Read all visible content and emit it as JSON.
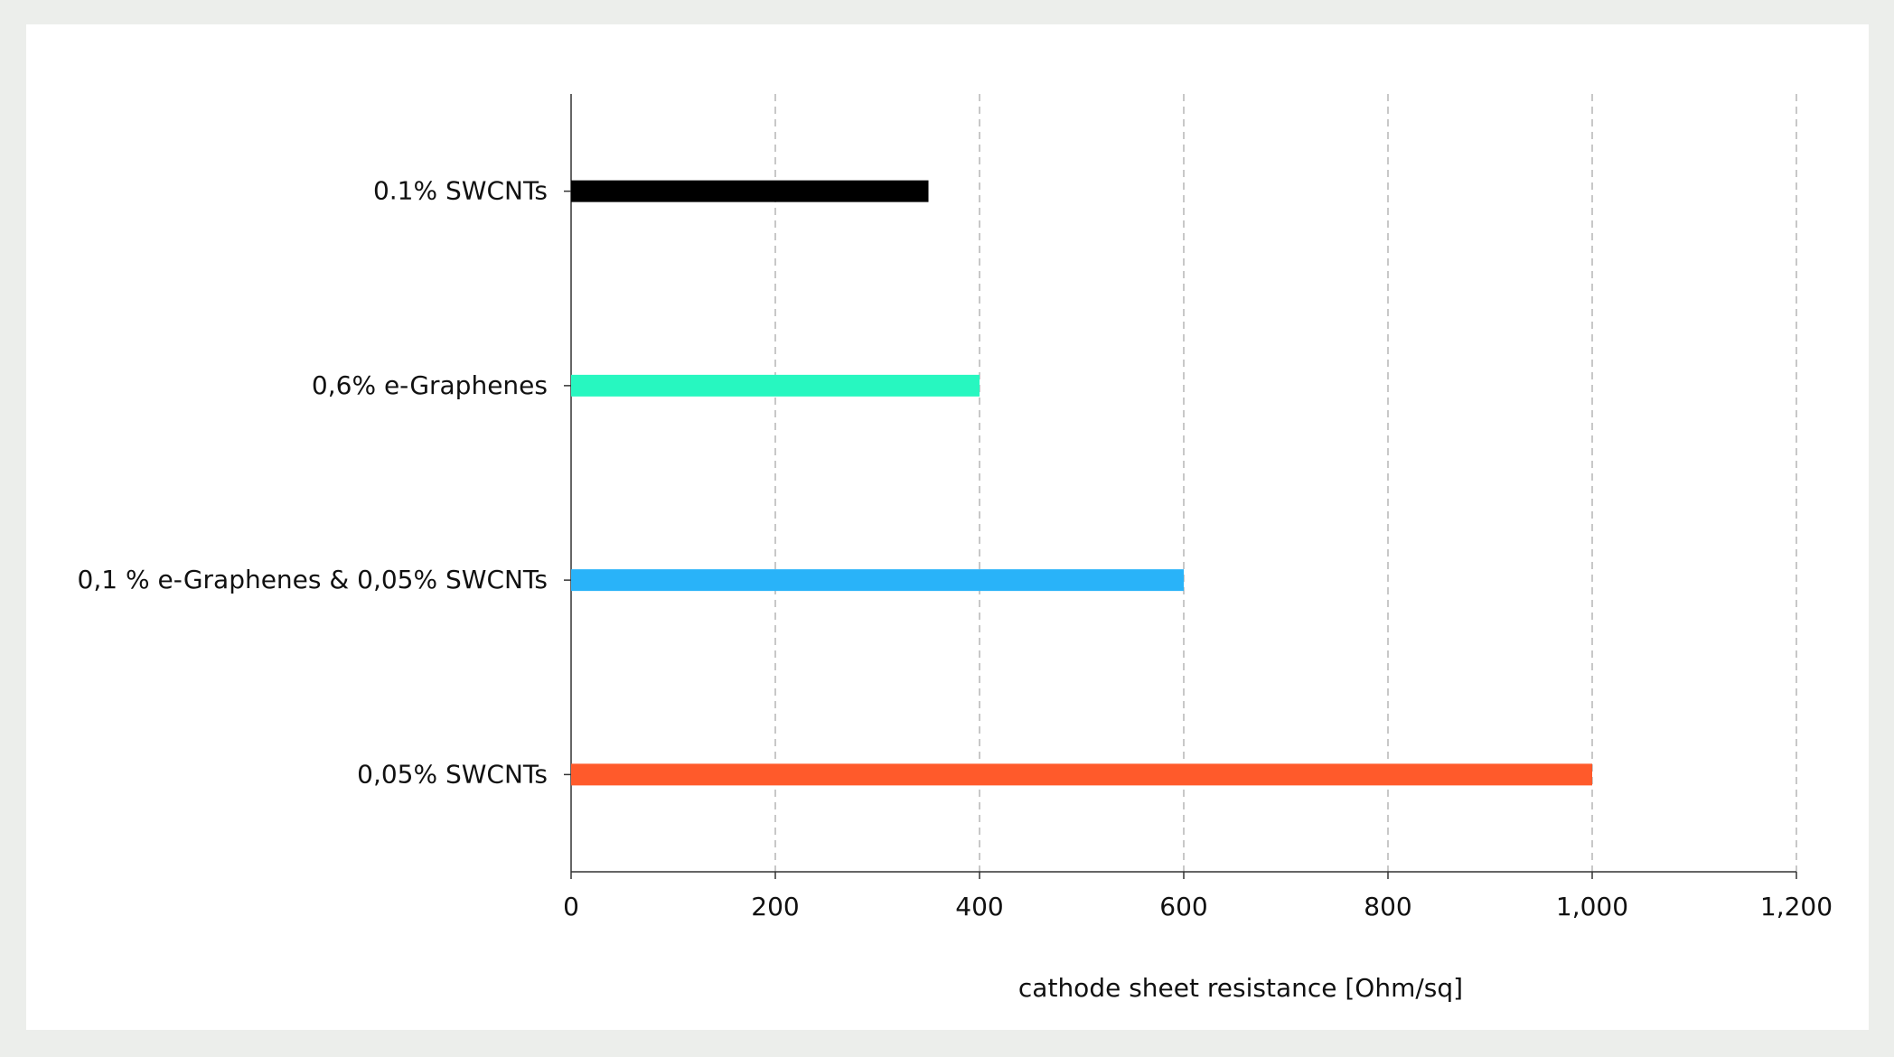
{
  "chart_data": {
    "type": "barh",
    "categories": [
      "0.1% SWCNTs",
      "0,6% e-Graphenes",
      "0,1 % e-Graphenes & 0,05% SWCNTs",
      "0,05% SWCNTs"
    ],
    "values": [
      350,
      400,
      600,
      1000
    ],
    "colors": [
      "#000000",
      "#27f7c0",
      "#29b3f9",
      "#ff5a2b"
    ],
    "xlabel": "cathode sheet resistance [Ohm/sq]",
    "xlim": [
      0,
      1200
    ],
    "xticks": [
      0,
      200,
      400,
      600,
      800,
      {
        "value": 1000,
        "label": "1,000"
      },
      {
        "value": 1200,
        "label": "1,200"
      }
    ],
    "grid": true
  }
}
